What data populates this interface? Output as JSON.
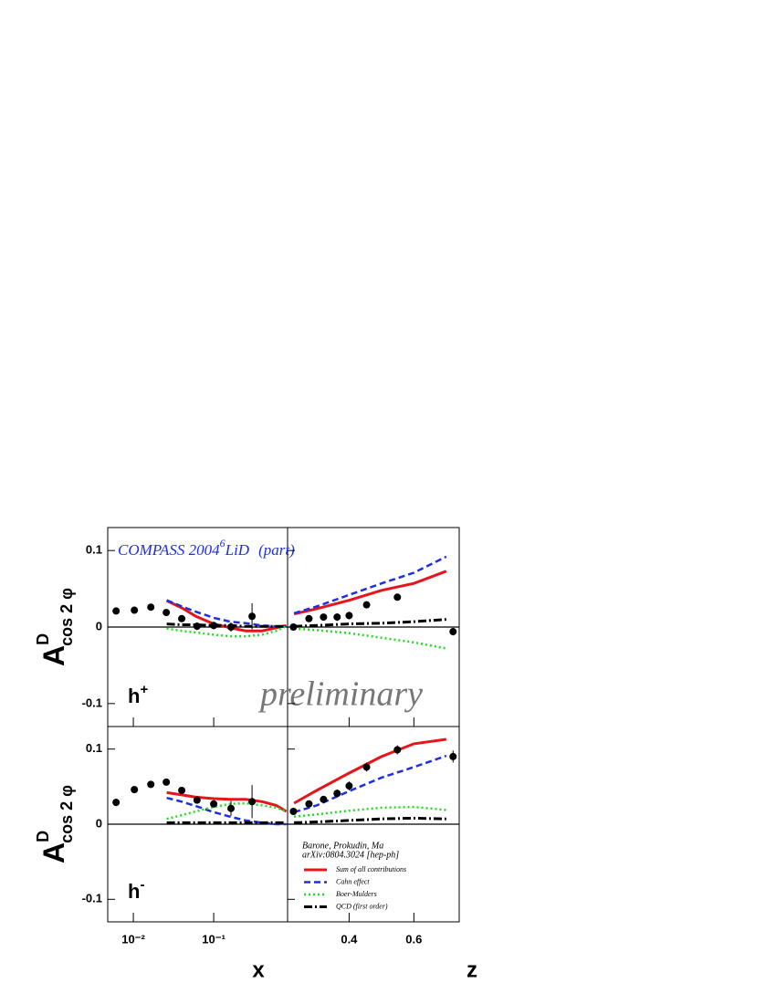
{
  "figure": {
    "title_parts": [
      "COMPASS 2004",
      "6",
      "LiD",
      "(part)"
    ],
    "watermark": "preliminary",
    "y_label": {
      "main": "A",
      "sup": "D",
      "sub": "cos 2 φ"
    },
    "legend": {
      "notes": [
        "Barone, Prokudin, Ma",
        "arXiv:0804.3024 [hep-ph]"
      ],
      "entries": [
        {
          "name": "Sum of all contributions",
          "color": "#e8141c",
          "dash": "solid"
        },
        {
          "name": "Cahn effect",
          "color": "#1f2ee0",
          "dash": "dashed"
        },
        {
          "name": "Boer-Mulders",
          "color": "#22dd22",
          "dash": "dotted"
        },
        {
          "name": "QCD (first order)",
          "color": "#000000",
          "dash": "dashdot"
        }
      ]
    }
  },
  "chart_data": [
    {
      "type": "line",
      "x_label": "x",
      "log_x": true,
      "label": "h",
      "charge": "+",
      "xlim": [
        0.0048,
        0.83
      ],
      "xticks": [
        {
          "value": 0.01,
          "label": "10⁻²"
        },
        {
          "value": 0.1,
          "label": "10⁻¹"
        }
      ],
      "ylim": [
        -0.13,
        0.13
      ],
      "yticks": [
        0.1,
        0,
        -0.1
      ],
      "points": {
        "x": [
          0.0061,
          0.0103,
          0.0165,
          0.0257,
          0.04,
          0.062,
          0.1,
          0.164,
          0.3
        ],
        "values": [
          0.021,
          0.022,
          0.026,
          0.019,
          0.011,
          0.001,
          0.002,
          0.0,
          0.014
        ],
        "errors": [
          0.004,
          0.004,
          0.003,
          0.004,
          0.004,
          0.005,
          0.005,
          0.006,
          0.017
        ]
      },
      "curves": [
        {
          "x": [
            0.026,
            0.04,
            0.06,
            0.1,
            0.16,
            0.25,
            0.4,
            0.6,
            0.8
          ],
          "values": [
            0.0345,
            0.025,
            0.014,
            0.004,
            -0.001,
            -0.005,
            -0.005,
            -0.001,
            0.002
          ]
        },
        {
          "x": [
            0.026,
            0.04,
            0.06,
            0.1,
            0.16,
            0.25,
            0.4,
            0.6,
            0.8
          ],
          "values": [
            0.035,
            0.027,
            0.02,
            0.012,
            0.007,
            0.005,
            0.002,
            0.001,
            0.001
          ]
        },
        {
          "x": [
            0.026,
            0.04,
            0.06,
            0.1,
            0.16,
            0.25,
            0.4,
            0.6,
            0.8
          ],
          "values": [
            -0.002,
            -0.005,
            -0.007,
            -0.01,
            -0.012,
            -0.012,
            -0.01,
            -0.005,
            0.001
          ]
        },
        {
          "x": [
            0.026,
            0.04,
            0.06,
            0.1,
            0.16,
            0.25,
            0.4,
            0.6,
            0.8
          ],
          "values": [
            0.004,
            0.003,
            0.003,
            0.002,
            0.002,
            0.001,
            0.001,
            0.001,
            0.001
          ]
        }
      ]
    },
    {
      "type": "line",
      "x_label": "z",
      "log_x": false,
      "xlim": [
        0.21,
        0.74
      ],
      "xticks": [
        0.4,
        0.6
      ],
      "ylim": [
        -0.13,
        0.13
      ],
      "yticks": [
        0.1,
        0,
        -0.1
      ],
      "points": {
        "x": [
          0.228,
          0.276,
          0.321,
          0.363,
          0.4,
          0.454,
          0.549,
          0.721
        ],
        "values": [
          0.0,
          0.011,
          0.013,
          0.013,
          0.015,
          0.029,
          0.039,
          -0.006
        ],
        "errors": [
          0.003,
          0.004,
          0.004,
          0.005,
          0.005,
          0.004,
          0.004,
          0.005
        ]
      },
      "curves": [
        {
          "x": [
            0.23,
            0.3,
            0.4,
            0.5,
            0.6,
            0.7
          ],
          "values": [
            0.017,
            0.024,
            0.035,
            0.048,
            0.057,
            0.073
          ]
        },
        {
          "x": [
            0.23,
            0.3,
            0.4,
            0.5,
            0.6,
            0.7
          ],
          "values": [
            0.018,
            0.027,
            0.042,
            0.057,
            0.071,
            0.092
          ]
        },
        {
          "x": [
            0.23,
            0.3,
            0.4,
            0.5,
            0.6,
            0.7
          ],
          "values": [
            -0.002,
            -0.004,
            -0.008,
            -0.014,
            -0.02,
            -0.028
          ]
        },
        {
          "x": [
            0.23,
            0.3,
            0.4,
            0.5,
            0.6,
            0.7
          ],
          "values": [
            0.001,
            0.002,
            0.004,
            0.005,
            0.007,
            0.01
          ]
        }
      ]
    },
    {
      "type": "line",
      "x_label": "x",
      "log_x": true,
      "label": "h",
      "charge": "-",
      "xlim": [
        0.0048,
        0.83
      ],
      "xticks": [
        {
          "value": 0.01,
          "label": "10⁻²"
        },
        {
          "value": 0.1,
          "label": "10⁻¹"
        }
      ],
      "ylim": [
        -0.13,
        0.13
      ],
      "yticks": [
        0.1,
        0,
        -0.1
      ],
      "points": {
        "x": [
          0.0061,
          0.0103,
          0.0165,
          0.0257,
          0.04,
          0.062,
          0.1,
          0.164,
          0.3
        ],
        "values": [
          0.029,
          0.046,
          0.053,
          0.056,
          0.045,
          0.032,
          0.027,
          0.021,
          0.03
        ],
        "errors": [
          0.005,
          0.004,
          0.004,
          0.004,
          0.004,
          0.004,
          0.005,
          0.01,
          0.022
        ]
      },
      "curves": [
        {
          "x": [
            0.026,
            0.04,
            0.06,
            0.1,
            0.16,
            0.25,
            0.4,
            0.6,
            0.8
          ],
          "values": [
            0.042,
            0.039,
            0.036,
            0.034,
            0.033,
            0.033,
            0.03,
            0.025,
            0.017
          ]
        },
        {
          "x": [
            0.026,
            0.04,
            0.06,
            0.1,
            0.16,
            0.25,
            0.4,
            0.6,
            0.8
          ],
          "values": [
            0.035,
            0.03,
            0.024,
            0.016,
            0.01,
            0.005,
            0.002,
            0.0,
            0.0
          ]
        },
        {
          "x": [
            0.026,
            0.04,
            0.06,
            0.1,
            0.16,
            0.25,
            0.4,
            0.6,
            0.8
          ],
          "values": [
            0.007,
            0.012,
            0.017,
            0.023,
            0.027,
            0.028,
            0.025,
            0.022,
            0.017
          ]
        },
        {
          "x": [
            0.026,
            0.04,
            0.06,
            0.1,
            0.16,
            0.25,
            0.4,
            0.6,
            0.8
          ],
          "values": [
            0.002,
            0.002,
            0.002,
            0.002,
            0.002,
            0.002,
            0.002,
            0.002,
            0.002
          ]
        }
      ]
    },
    {
      "type": "line",
      "x_label": "z",
      "log_x": false,
      "xlim": [
        0.21,
        0.74
      ],
      "xticks": [
        0.4,
        0.6
      ],
      "ylim": [
        -0.13,
        0.13
      ],
      "yticks": [
        0.1,
        0,
        -0.1
      ],
      "points": {
        "x": [
          0.228,
          0.276,
          0.321,
          0.363,
          0.4,
          0.454,
          0.549,
          0.721
        ],
        "values": [
          0.017,
          0.027,
          0.033,
          0.041,
          0.051,
          0.076,
          0.099,
          0.09
        ],
        "errors": [
          0.003,
          0.004,
          0.004,
          0.005,
          0.006,
          0.006,
          0.006,
          0.008
        ]
      },
      "curves": [
        {
          "x": [
            0.23,
            0.3,
            0.4,
            0.5,
            0.6,
            0.7
          ],
          "values": [
            0.028,
            0.045,
            0.068,
            0.09,
            0.107,
            0.113
          ]
        },
        {
          "x": [
            0.23,
            0.3,
            0.4,
            0.5,
            0.6,
            0.7
          ],
          "values": [
            0.016,
            0.025,
            0.044,
            0.062,
            0.076,
            0.091
          ]
        },
        {
          "x": [
            0.23,
            0.3,
            0.4,
            0.5,
            0.6,
            0.7
          ],
          "values": [
            0.01,
            0.013,
            0.018,
            0.022,
            0.023,
            0.019
          ]
        },
        {
          "x": [
            0.23,
            0.3,
            0.4,
            0.5,
            0.6,
            0.7
          ],
          "values": [
            0.002,
            0.003,
            0.005,
            0.007,
            0.008,
            0.007
          ]
        }
      ]
    }
  ]
}
